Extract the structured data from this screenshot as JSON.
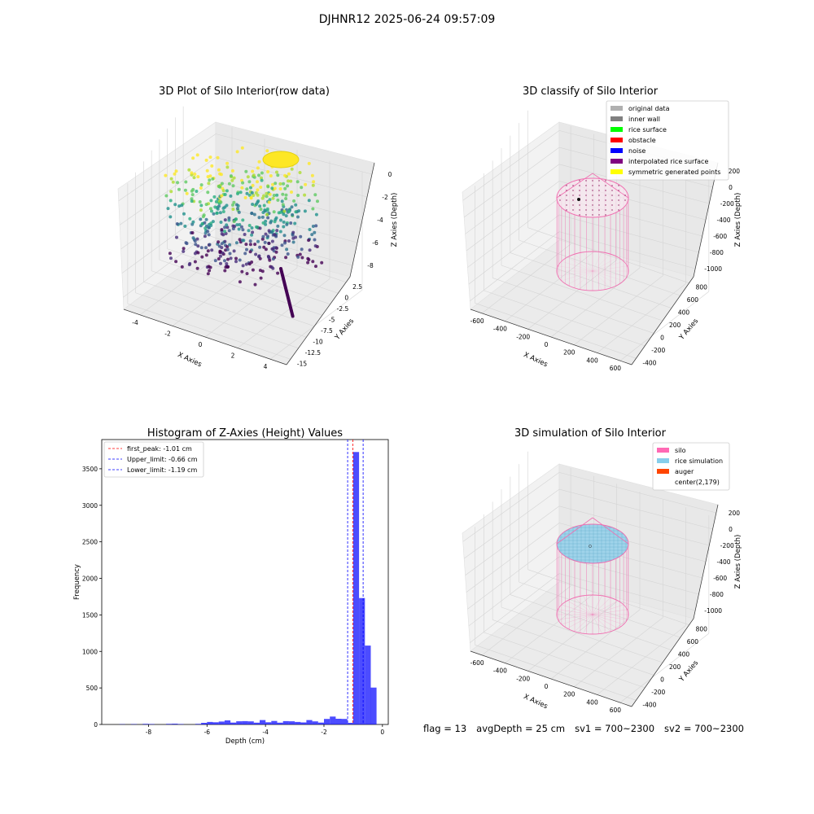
{
  "suptitle": "DJHNR12 2025-06-24 09:57:09",
  "footer": {
    "flag": "flag = 13",
    "avg_depth": "avgDepth = 25 cm",
    "sv1": "sv1 = 700~2300",
    "sv2": "sv2 = 700~2300"
  },
  "chart_data": [
    {
      "type": "scatter",
      "projection": "3d",
      "title": "3D Plot of Silo Interior(row data)",
      "xlabel": "X Axies",
      "ylabel": "Y Axies",
      "zlabel": "Z Axies (Depth)",
      "xticks": [
        -4,
        -2,
        0,
        2,
        4
      ],
      "yticks": [
        2.5,
        0.0,
        -2.5,
        -5.0,
        -7.5,
        -10.0,
        -12.5,
        -15.0
      ],
      "zticks": [
        0,
        -2,
        -4,
        -6,
        -8
      ],
      "xlim": [
        -5,
        5
      ],
      "ylim": [
        -15,
        2.5
      ],
      "zlim": [
        -9,
        0
      ],
      "colormap": "viridis",
      "notes": "point cloud of silo interior, colored by depth"
    },
    {
      "type": "scatter",
      "projection": "3d",
      "title": "3D classify of Silo Interior",
      "xlabel": "X Axies",
      "ylabel": "Y Axies",
      "zlabel": "Z Axies (Depth)",
      "xticks": [
        -600,
        -400,
        -200,
        0,
        200,
        400,
        600
      ],
      "yticks": [
        800,
        600,
        400,
        200,
        0,
        -200,
        -400
      ],
      "zticks": [
        200,
        0,
        -200,
        -400,
        -600,
        -800,
        -1000
      ],
      "legend": [
        {
          "label": "original data",
          "color": "#b0b0b0"
        },
        {
          "label": "inner wall",
          "color": "#808080"
        },
        {
          "label": "rice surface",
          "color": "#00ff00"
        },
        {
          "label": "obstacle",
          "color": "#ff0000"
        },
        {
          "label": "noise",
          "color": "#0000ff"
        },
        {
          "label": "interpolated rice surface",
          "color": "#800080"
        },
        {
          "label": "symmetric generated points",
          "color": "#ffff00"
        }
      ],
      "legend_loc": "upper right"
    },
    {
      "type": "bar",
      "title": "Histogram of Z-Axies (Height) Values",
      "xlabel": "Depth (cm)",
      "ylabel": "Frequency",
      "xlim": [
        -9.6,
        0.2
      ],
      "ylim": [
        0,
        3900
      ],
      "xticks": [
        -8,
        -6,
        -4,
        -2,
        0
      ],
      "yticks": [
        0,
        500,
        1000,
        1500,
        2000,
        2500,
        3000,
        3500
      ],
      "bar_color": "#0000ff",
      "bin_width": 0.2,
      "bins": [
        {
          "x": -9.0,
          "v": 3
        },
        {
          "x": -8.6,
          "v": 4
        },
        {
          "x": -8.2,
          "v": 8
        },
        {
          "x": -8.0,
          "v": 6
        },
        {
          "x": -7.4,
          "v": 8
        },
        {
          "x": -7.2,
          "v": 10
        },
        {
          "x": -7.0,
          "v": 6
        },
        {
          "x": -6.4,
          "v": 8
        },
        {
          "x": -6.2,
          "v": 22
        },
        {
          "x": -6.0,
          "v": 34
        },
        {
          "x": -5.8,
          "v": 30
        },
        {
          "x": -5.6,
          "v": 40
        },
        {
          "x": -5.4,
          "v": 56
        },
        {
          "x": -5.2,
          "v": 26
        },
        {
          "x": -5.0,
          "v": 44
        },
        {
          "x": -4.8,
          "v": 46
        },
        {
          "x": -4.6,
          "v": 42
        },
        {
          "x": -4.4,
          "v": 24
        },
        {
          "x": -4.2,
          "v": 60
        },
        {
          "x": -4.0,
          "v": 30
        },
        {
          "x": -3.8,
          "v": 48
        },
        {
          "x": -3.6,
          "v": 24
        },
        {
          "x": -3.4,
          "v": 46
        },
        {
          "x": -3.2,
          "v": 44
        },
        {
          "x": -3.0,
          "v": 34
        },
        {
          "x": -2.8,
          "v": 28
        },
        {
          "x": -2.6,
          "v": 60
        },
        {
          "x": -2.4,
          "v": 42
        },
        {
          "x": -2.2,
          "v": 26
        },
        {
          "x": -2.0,
          "v": 76
        },
        {
          "x": -1.8,
          "v": 108
        },
        {
          "x": -1.6,
          "v": 78
        },
        {
          "x": -1.4,
          "v": 76
        },
        {
          "x": -1.2,
          "v": 22
        },
        {
          "x": -1.0,
          "v": 3730
        },
        {
          "x": -0.8,
          "v": 1730
        },
        {
          "x": -0.6,
          "v": 1080
        },
        {
          "x": -0.4,
          "v": 505
        }
      ],
      "vlines": [
        {
          "label": "first_peak: -1.01 cm",
          "x": -1.01,
          "color": "#ff0000"
        },
        {
          "label": "Upper_limit: -0.66 cm",
          "x": -0.66,
          "color": "#0000ff"
        },
        {
          "label": "Lower_limit: -1.19 cm",
          "x": -1.19,
          "color": "#0000ff"
        }
      ],
      "legend_loc": "upper left"
    },
    {
      "type": "scatter",
      "projection": "3d",
      "title": "3D simulation of Silo Interior",
      "xlabel": "X Axies",
      "ylabel": "Y Axies",
      "zlabel": "Z Axies (Depth)",
      "xticks": [
        -600,
        -400,
        -200,
        0,
        200,
        400,
        600
      ],
      "yticks": [
        800,
        600,
        400,
        200,
        0,
        -200,
        -400
      ],
      "zticks": [
        200,
        0,
        -200,
        -400,
        -600,
        -800,
        -1000
      ],
      "legend": [
        {
          "label": "silo",
          "color": "#ff69b4"
        },
        {
          "label": "rice simulation",
          "color": "#87ceeb"
        },
        {
          "label": "auger",
          "color": "#ff4500"
        },
        {
          "label": "center(2,179)",
          "color": "none"
        }
      ],
      "legend_loc": "upper right"
    }
  ]
}
